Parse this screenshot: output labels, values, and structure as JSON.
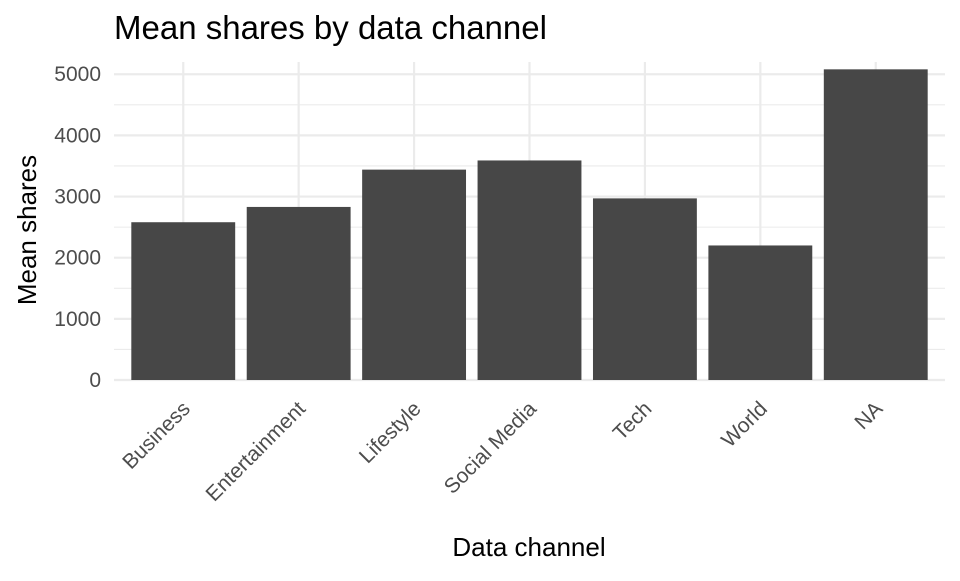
{
  "chart_data": {
    "type": "bar",
    "title": "Mean shares by data channel",
    "xlabel": "Data channel",
    "ylabel": "Mean shares",
    "categories": [
      "Business",
      "Entertainment",
      "Lifestyle",
      "Social Media",
      "Tech",
      "World",
      "NA"
    ],
    "values": [
      2580,
      2830,
      3440,
      3590,
      2970,
      2200,
      5080
    ],
    "ylim": [
      0,
      5200
    ],
    "yticks": [
      0,
      1000,
      2000,
      3000,
      4000,
      5000
    ],
    "bar_color": "#474747",
    "grid": true,
    "x_tick_rotation_deg": 45,
    "theme": "minimal"
  }
}
